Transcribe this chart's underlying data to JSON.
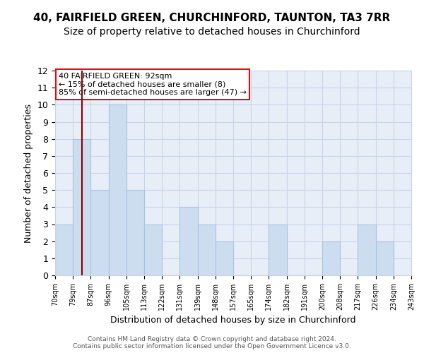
{
  "title_line1": "40, FAIRFIELD GREEN, CHURCHINFORD, TAUNTON, TA3 7RR",
  "title_line2": "Size of property relative to detached houses in Churchinford",
  "xlabel": "Distribution of detached houses by size in Churchinford",
  "ylabel": "Number of detached properties",
  "bin_edges": [
    "70sqm",
    "79sqm",
    "87sqm",
    "96sqm",
    "105sqm",
    "113sqm",
    "122sqm",
    "131sqm",
    "139sqm",
    "148sqm",
    "157sqm",
    "165sqm",
    "174sqm",
    "182sqm",
    "191sqm",
    "200sqm",
    "208sqm",
    "217sqm",
    "226sqm",
    "234sqm",
    "243sqm"
  ],
  "bar_heights": [
    3,
    8,
    5,
    10,
    5,
    3,
    0,
    4,
    3,
    2,
    0,
    0,
    3,
    0,
    0,
    2,
    0,
    3,
    2,
    0
  ],
  "bar_color": "#ccddf0",
  "bar_edge_color": "#a8c4e0",
  "annotation_text": "40 FAIRFIELD GREEN: 92sqm\n← 15% of detached houses are smaller (8)\n85% of semi-detached houses are larger (47) →",
  "annotation_box_color": "white",
  "annotation_box_edge_color": "red",
  "vline_color": "#8b0000",
  "vline_x": 1.5,
  "ylim": [
    0,
    12
  ],
  "yticks": [
    0,
    1,
    2,
    3,
    4,
    5,
    6,
    7,
    8,
    9,
    10,
    11,
    12
  ],
  "grid_color": "#c8d4e8",
  "bg_color": "#e8eef8",
  "footer": "Contains HM Land Registry data © Crown copyright and database right 2024.\nContains public sector information licensed under the Open Government Licence v3.0.",
  "title_fontsize": 11,
  "subtitle_fontsize": 10
}
